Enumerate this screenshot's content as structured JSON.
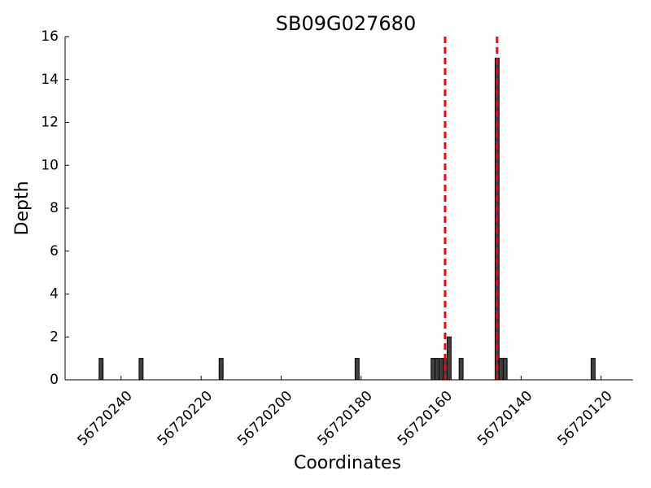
{
  "chart_data": {
    "type": "bar",
    "title": "SB09G027680",
    "x_label": "Coordinates",
    "y_label": "Depth",
    "x": [
      56720245,
      56720235,
      56720215,
      56720181,
      56720162,
      56720161,
      56720160,
      56720159,
      56720158,
      56720155,
      56720146,
      56720145,
      56720144,
      56720122
    ],
    "values": [
      1,
      1,
      1,
      1,
      1,
      1,
      1,
      1,
      2,
      1,
      15,
      1,
      1,
      1
    ],
    "color": "#404040",
    "xlim": [
      56720254,
      56720112
    ],
    "xticks": [
      56720240,
      56720220,
      56720200,
      56720180,
      56720160,
      56720140,
      56720120
    ],
    "ylim": [
      0,
      16
    ],
    "yticks": [
      0,
      2,
      4,
      6,
      8,
      10,
      12,
      14,
      16
    ],
    "vlines": [
      56720159,
      56720146
    ],
    "vline_color": "#ff0000"
  }
}
